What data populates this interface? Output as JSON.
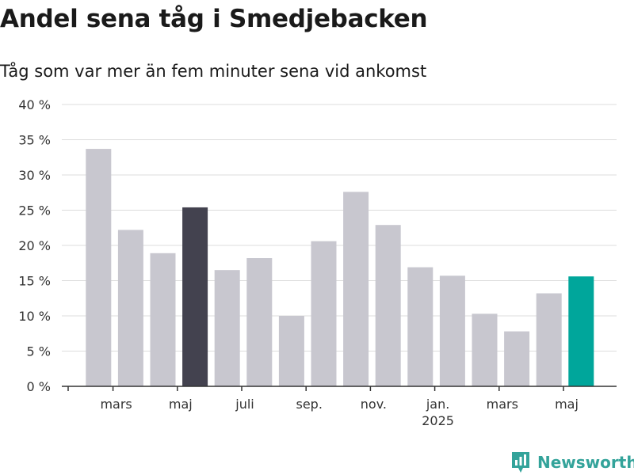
{
  "header": {
    "title": "Andel sena tåg i Smedjebacken",
    "subtitle": "Tåg som var mer än fem minuter sena vid ankomst"
  },
  "chart_data": {
    "type": "bar",
    "x": [
      "2024-02",
      "2024-03",
      "2024-04",
      "2024-05",
      "2024-06",
      "2024-07",
      "2024-08",
      "2024-09",
      "2024-10",
      "2024-11",
      "2024-12",
      "2025-01",
      "2025-02",
      "2025-03",
      "2025-04",
      "2025-05"
    ],
    "values": [
      33.7,
      22.2,
      18.9,
      25.4,
      16.5,
      18.2,
      10.0,
      20.6,
      27.6,
      22.9,
      16.9,
      15.7,
      10.3,
      7.8,
      13.2,
      15.6
    ],
    "highlight": {
      "2024-05": "#43424f",
      "2025-05": "#00a69b"
    },
    "default_color": "#c8c7cf",
    "ylim": [
      0,
      40
    ],
    "yticks": [
      0,
      5,
      10,
      15,
      20,
      25,
      30,
      35,
      40
    ],
    "ytick_labels": [
      "0 %",
      "5 %",
      "10 %",
      "15 %",
      "20 %",
      "25 %",
      "30 %",
      "35 %",
      "40 %"
    ],
    "xticks": [
      {
        "at": "2024-03",
        "label": "mars"
      },
      {
        "at": "2024-05",
        "label": "maj"
      },
      {
        "at": "2024-07",
        "label": "juli"
      },
      {
        "at": "2024-09",
        "label": "sep."
      },
      {
        "at": "2024-11",
        "label": "nov."
      },
      {
        "at": "2025-01",
        "label": "jan.",
        "sublabel": "2025"
      },
      {
        "at": "2025-03",
        "label": "mars"
      },
      {
        "at": "2025-05",
        "label": "maj"
      }
    ],
    "grid": true
  },
  "brand": {
    "name": "Newsworthy",
    "icon": "bar-chart-logo-icon",
    "color": "#33a39a"
  }
}
